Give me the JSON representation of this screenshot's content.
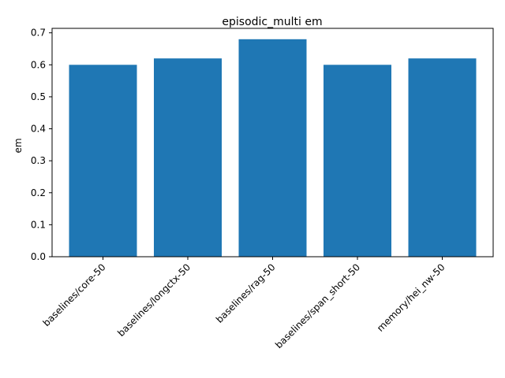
{
  "chart_data": {
    "type": "bar",
    "title": "episodic_multi em",
    "xlabel": "",
    "ylabel": "em",
    "categories": [
      "baselines/core-50",
      "baselines/longctx-50",
      "baselines/rag-50",
      "baselines/span_short-50",
      "memory/hei_nw-50"
    ],
    "values": [
      0.6,
      0.62,
      0.68,
      0.6,
      0.62
    ],
    "ylim": [
      0,
      0.714
    ],
    "yticks": [
      0.0,
      0.1,
      0.2,
      0.3,
      0.4,
      0.5,
      0.6,
      0.7
    ],
    "ytick_labels": [
      "0.0",
      "0.1",
      "0.2",
      "0.3",
      "0.4",
      "0.5",
      "0.6",
      "0.7"
    ],
    "grid": false,
    "bar_color": "#1f77b4"
  }
}
